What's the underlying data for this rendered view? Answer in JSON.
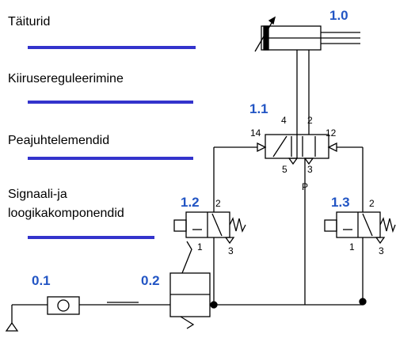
{
  "levels": [
    {
      "lines": [
        "Täiturid"
      ]
    },
    {
      "lines": [
        "Kiirusereguleerimine"
      ]
    },
    {
      "lines": [
        "Peajuhtelemendid"
      ]
    },
    {
      "lines": [
        "Signaali-ja",
        "loogikakomponendid"
      ]
    }
  ],
  "components": [
    {
      "label": "1.0"
    },
    {
      "label": "1.1",
      "ports": [
        "4",
        "2",
        "14",
        "12",
        "5",
        "3",
        "P"
      ]
    },
    {
      "label": "1.2",
      "ports": [
        "2",
        "1",
        "3"
      ]
    },
    {
      "label": "1.3",
      "ports": [
        "2",
        "1",
        "3"
      ]
    },
    {
      "label": "0.1"
    },
    {
      "label": "0.2"
    }
  ]
}
